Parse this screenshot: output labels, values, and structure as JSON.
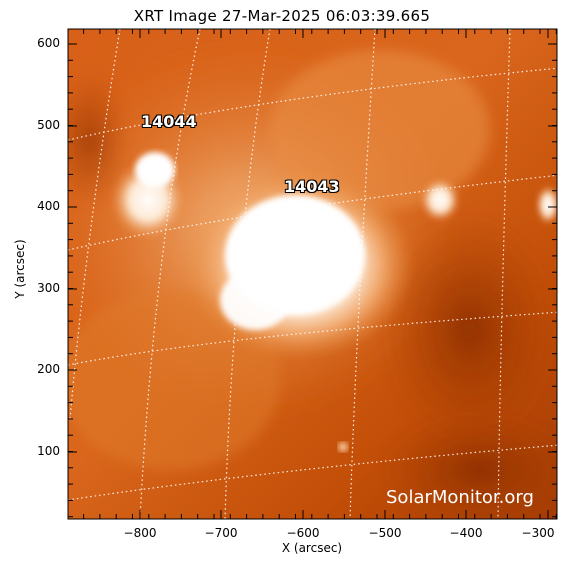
{
  "title": "XRT Image 27-Mar-2025 06:03:39.665",
  "axes": {
    "x_label": "X (arcsec)",
    "y_label": "Y (arcsec)",
    "x_ticks": [
      "−800",
      "−700",
      "−600",
      "−500",
      "−400",
      "−300"
    ],
    "y_ticks": [
      "600",
      "500",
      "400",
      "300",
      "200",
      "100"
    ]
  },
  "active_regions": [
    {
      "label": "14044"
    },
    {
      "label": "14043"
    }
  ],
  "watermark": "SolarMonitor.org",
  "colors": {
    "base": "#c24e07",
    "mid": "#e07a25",
    "bright": "#ffffff",
    "dark": "#8a2d03",
    "grid": "#ffffff"
  }
}
